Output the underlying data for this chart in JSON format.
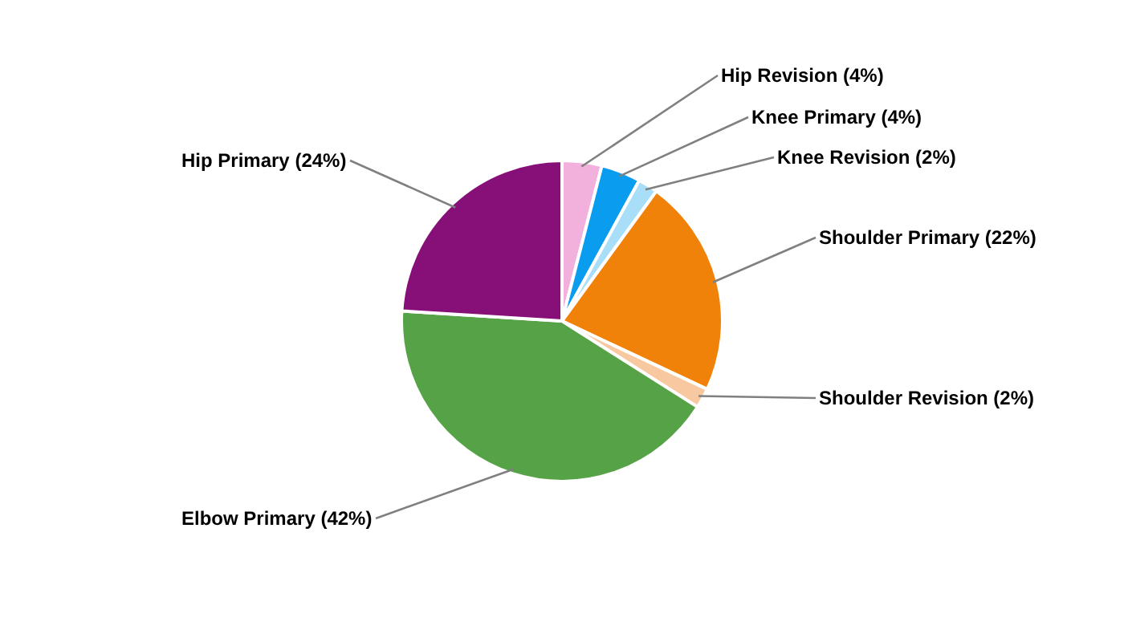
{
  "chart_data": {
    "type": "pie",
    "categories": [
      "Hip Revision",
      "Knee Primary",
      "Knee Revision",
      "Shoulder Primary",
      "Shoulder Revision",
      "Elbow Primary",
      "Hip Primary"
    ],
    "values": [
      4,
      4,
      2,
      22,
      2,
      42,
      24
    ],
    "value_labels": [
      "(4%)",
      "(4%)",
      "(2%)",
      "(22%)",
      "(2%)",
      "(42%)",
      "(24%)"
    ],
    "colors": [
      "#f2b0dc",
      "#0a9cee",
      "#a8def8",
      "#f0820a",
      "#f8c8a0",
      "#56a246",
      "#861078"
    ],
    "legend": false
  }
}
